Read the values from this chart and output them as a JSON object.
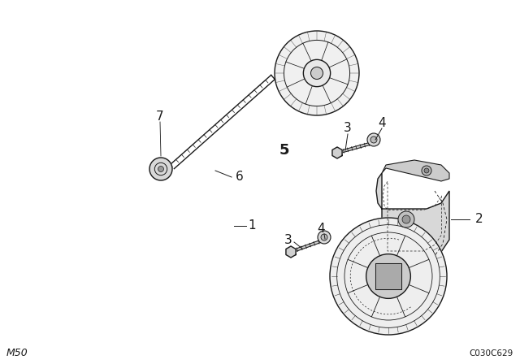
{
  "background_color": "#ffffff",
  "line_color": "#1a1a1a",
  "label_color": "#000000",
  "bottom_left_text": "M50",
  "bottom_right_text": "C030C629",
  "figsize": [
    6.4,
    4.48
  ],
  "dpi": 100,
  "belt_ribs": 7,
  "belt_color": "#111111"
}
